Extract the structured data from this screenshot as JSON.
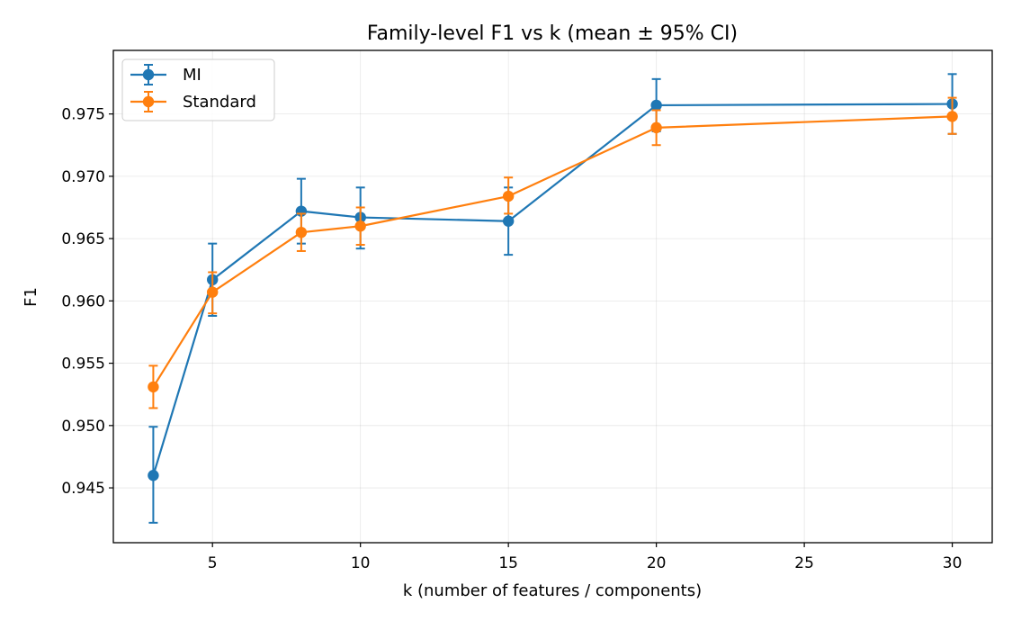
{
  "chart_data": {
    "type": "line",
    "title": "Family-level F1 vs k (mean ± 95% CI)",
    "xlabel": "k (number of features / components)",
    "ylabel": "F1",
    "xlim": [
      1.65,
      31.35
    ],
    "ylim": [
      0.9406,
      0.9801
    ],
    "xticks": [
      5,
      10,
      15,
      20,
      25,
      30
    ],
    "xtick_labels": [
      "5",
      "10",
      "15",
      "20",
      "25",
      "30"
    ],
    "yticks": [
      0.945,
      0.95,
      0.955,
      0.96,
      0.965,
      0.97,
      0.975
    ],
    "ytick_labels": [
      "0.945",
      "0.950",
      "0.955",
      "0.960",
      "0.965",
      "0.970",
      "0.975"
    ],
    "grid": true,
    "legend_position": "top-left",
    "x": [
      3,
      5,
      8,
      10,
      15,
      20,
      30
    ],
    "series": [
      {
        "name": "MI",
        "color": "#1f77b4",
        "values": [
          0.946,
          0.9617,
          0.9672,
          0.9667,
          0.9664,
          0.9757,
          0.9758
        ],
        "ci_low": [
          0.9422,
          0.9588,
          0.9646,
          0.9642,
          0.9637,
          0.9736,
          0.9734
        ],
        "ci_high": [
          0.9499,
          0.9646,
          0.9698,
          0.9691,
          0.9691,
          0.9778,
          0.9782
        ]
      },
      {
        "name": "Standard",
        "color": "#ff7f0e",
        "values": [
          0.9531,
          0.9607,
          0.9655,
          0.966,
          0.9684,
          0.9739,
          0.9748
        ],
        "ci_low": [
          0.9514,
          0.959,
          0.964,
          0.9645,
          0.967,
          0.9725,
          0.9734
        ],
        "ci_high": [
          0.9548,
          0.9623,
          0.967,
          0.9675,
          0.9699,
          0.9753,
          0.9763
        ]
      }
    ]
  }
}
